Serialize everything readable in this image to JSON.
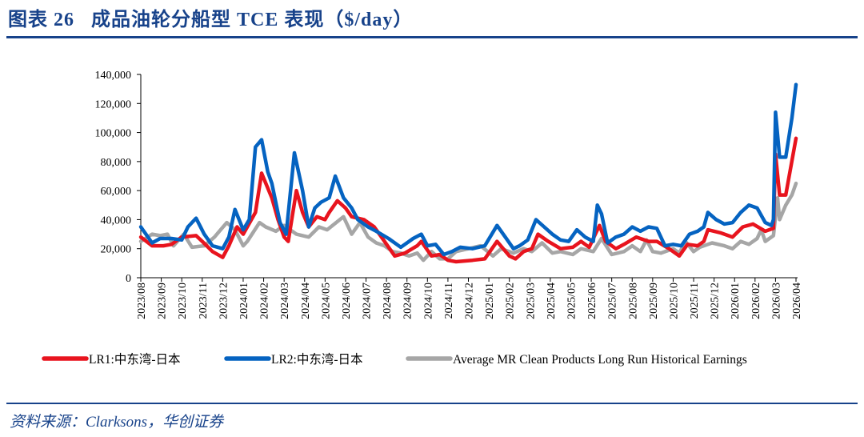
{
  "title": "图表 26   成品油轮分船型 TCE 表现（$/day）",
  "source": "资料来源：Clarksons，华创证券",
  "chart_data": {
    "type": "line",
    "title": "成品油轮分船型 TCE 表现（$/day）",
    "xlabel": "",
    "ylabel": "",
    "x_unit": "months since 2023/08",
    "value_scale": 1000,
    "ylim": [
      0,
      140000
    ],
    "yticks": [
      "0",
      "20,000",
      "40,000",
      "60,000",
      "80,000",
      "100,000",
      "120,000",
      "140,000"
    ],
    "xticks": [
      "2023/08",
      "2023/09",
      "2023/10",
      "2023/11",
      "2023/12",
      "2024/01",
      "2024/02",
      "2024/03",
      "2024/04",
      "2024/05",
      "2024/06",
      "2024/07",
      "2024/08",
      "2024/09",
      "2024/10",
      "2024/11",
      "2024/12",
      "2025/01",
      "2025/02",
      "2025/03",
      "2025/04",
      "2025/05",
      "2025/06",
      "2025/07",
      "2025/08",
      "2025/09",
      "2025/10",
      "2025/11",
      "2025/12",
      "2026/01",
      "2026/02",
      "2026/03",
      "2026/04"
    ],
    "grid": false,
    "legend_position": "bottom",
    "series": [
      {
        "name": "LR1:中东湾-日本",
        "color": "#e8141e",
        "points": [
          [
            0,
            28
          ],
          [
            0.55,
            22
          ],
          [
            1.1,
            22
          ],
          [
            1.5,
            23
          ],
          [
            2,
            28
          ],
          [
            2.7,
            29
          ],
          [
            3,
            25
          ],
          [
            3.5,
            18
          ],
          [
            4,
            14
          ],
          [
            4.3,
            22
          ],
          [
            4.7,
            35
          ],
          [
            5,
            30
          ],
          [
            5.6,
            45
          ],
          [
            5.9,
            72
          ],
          [
            6.4,
            55
          ],
          [
            6.7,
            40
          ],
          [
            7,
            28
          ],
          [
            7.2,
            25
          ],
          [
            7.6,
            60
          ],
          [
            7.9,
            45
          ],
          [
            8.2,
            35
          ],
          [
            8.6,
            42
          ],
          [
            9,
            40
          ],
          [
            9.2,
            45
          ],
          [
            9.6,
            53
          ],
          [
            10,
            48
          ],
          [
            10.3,
            42
          ],
          [
            10.9,
            40
          ],
          [
            11.4,
            35
          ],
          [
            11.9,
            25
          ],
          [
            12.4,
            15
          ],
          [
            12.9,
            17
          ],
          [
            13.5,
            22
          ],
          [
            13.7,
            25
          ],
          [
            14.2,
            15
          ],
          [
            14.6,
            16
          ],
          [
            15,
            12
          ],
          [
            15.4,
            11
          ],
          [
            16.2,
            12
          ],
          [
            16.8,
            13
          ],
          [
            17.4,
            25
          ],
          [
            18,
            15
          ],
          [
            18.3,
            13
          ],
          [
            18.7,
            18
          ],
          [
            19.1,
            20
          ],
          [
            19.4,
            30
          ],
          [
            19.9,
            25
          ],
          [
            20.5,
            20
          ],
          [
            21.1,
            21
          ],
          [
            21.5,
            25
          ],
          [
            21.9,
            21
          ],
          [
            22.4,
            36
          ],
          [
            22.7,
            25
          ],
          [
            23.2,
            20
          ],
          [
            23.6,
            23
          ],
          [
            24.2,
            28
          ],
          [
            24.8,
            25
          ],
          [
            25.2,
            25
          ],
          [
            25.8,
            20
          ],
          [
            26.3,
            15
          ],
          [
            26.7,
            23
          ],
          [
            27.2,
            22
          ],
          [
            27.5,
            25
          ],
          [
            27.7,
            33
          ],
          [
            28.3,
            31
          ],
          [
            28.9,
            28
          ],
          [
            29.4,
            35
          ],
          [
            29.9,
            37
          ],
          [
            30.5,
            32
          ],
          [
            30.9,
            34
          ],
          [
            31,
            85
          ],
          [
            31.2,
            57
          ],
          [
            31.5,
            57
          ],
          [
            32,
            96
          ]
        ]
      },
      {
        "name": "LR2:中东湾-日本",
        "color": "#0563c1",
        "points": [
          [
            0,
            35
          ],
          [
            0.55,
            24
          ],
          [
            0.94,
            27
          ],
          [
            1.5,
            27
          ],
          [
            2,
            26
          ],
          [
            2.3,
            35
          ],
          [
            2.7,
            41
          ],
          [
            3.1,
            30
          ],
          [
            3.5,
            22
          ],
          [
            4,
            20
          ],
          [
            4.3,
            28
          ],
          [
            4.6,
            47
          ],
          [
            5,
            33
          ],
          [
            5.3,
            40
          ],
          [
            5.6,
            90
          ],
          [
            5.9,
            95
          ],
          [
            6.2,
            73
          ],
          [
            6.4,
            65
          ],
          [
            6.8,
            38
          ],
          [
            7.1,
            30
          ],
          [
            7.5,
            86
          ],
          [
            7.9,
            60
          ],
          [
            8.2,
            35
          ],
          [
            8.5,
            48
          ],
          [
            8.8,
            52
          ],
          [
            9.2,
            55
          ],
          [
            9.5,
            70
          ],
          [
            9.9,
            55
          ],
          [
            10.3,
            48
          ],
          [
            10.6,
            40
          ],
          [
            11.1,
            35
          ],
          [
            11.5,
            32
          ],
          [
            12.1,
            27
          ],
          [
            12.7,
            21
          ],
          [
            13.3,
            27
          ],
          [
            13.7,
            30
          ],
          [
            14,
            22
          ],
          [
            14.4,
            23
          ],
          [
            14.8,
            16
          ],
          [
            15.2,
            18
          ],
          [
            15.6,
            21
          ],
          [
            16.2,
            20
          ],
          [
            16.8,
            22
          ],
          [
            17.4,
            36
          ],
          [
            17.8,
            28
          ],
          [
            18.2,
            20
          ],
          [
            18.5,
            22
          ],
          [
            18.9,
            26
          ],
          [
            19.3,
            40
          ],
          [
            19.7,
            35
          ],
          [
            20.1,
            30
          ],
          [
            20.5,
            26
          ],
          [
            20.9,
            25
          ],
          [
            21.3,
            33
          ],
          [
            21.7,
            28
          ],
          [
            22.1,
            25
          ],
          [
            22.3,
            50
          ],
          [
            22.5,
            44
          ],
          [
            22.8,
            24
          ],
          [
            23.2,
            28
          ],
          [
            23.6,
            30
          ],
          [
            24,
            35
          ],
          [
            24.4,
            32
          ],
          [
            24.8,
            35
          ],
          [
            25.2,
            34
          ],
          [
            25.6,
            22
          ],
          [
            26,
            23
          ],
          [
            26.4,
            22
          ],
          [
            26.8,
            30
          ],
          [
            27.2,
            32
          ],
          [
            27.5,
            35
          ],
          [
            27.7,
            45
          ],
          [
            28.1,
            40
          ],
          [
            28.5,
            37
          ],
          [
            28.9,
            38
          ],
          [
            29.3,
            45
          ],
          [
            29.7,
            50
          ],
          [
            30.1,
            48
          ],
          [
            30.5,
            38
          ],
          [
            30.8,
            36
          ],
          [
            30.9,
            40
          ],
          [
            31,
            114
          ],
          [
            31.2,
            83
          ],
          [
            31.5,
            83
          ],
          [
            31.8,
            110
          ],
          [
            32,
            133
          ]
        ]
      },
      {
        "name": "Average MR Clean Products Long Run Historical Earnings",
        "color": "#a6a6a6",
        "points": [
          [
            0,
            25
          ],
          [
            0.55,
            30
          ],
          [
            0.94,
            29
          ],
          [
            1.3,
            30
          ],
          [
            1.6,
            22
          ],
          [
            2.1,
            30
          ],
          [
            2.5,
            21
          ],
          [
            3.1,
            22
          ],
          [
            3.6,
            28
          ],
          [
            3.9,
            33
          ],
          [
            4.2,
            38
          ],
          [
            4.6,
            33
          ],
          [
            5,
            22
          ],
          [
            5.2,
            25
          ],
          [
            5.8,
            38
          ],
          [
            6.1,
            35
          ],
          [
            6.6,
            32
          ],
          [
            7,
            36
          ],
          [
            7.6,
            30
          ],
          [
            8.2,
            28
          ],
          [
            8.7,
            35
          ],
          [
            9.1,
            33
          ],
          [
            9.9,
            42
          ],
          [
            10.3,
            30
          ],
          [
            10.7,
            38
          ],
          [
            11.1,
            28
          ],
          [
            11.5,
            24
          ],
          [
            11.9,
            22
          ],
          [
            12.3,
            18
          ],
          [
            12.7,
            17
          ],
          [
            13.1,
            15
          ],
          [
            13.5,
            17
          ],
          [
            13.8,
            12
          ],
          [
            14.2,
            18
          ],
          [
            14.6,
            13
          ],
          [
            15,
            13
          ],
          [
            15.4,
            18
          ],
          [
            16,
            20
          ],
          [
            16.6,
            22
          ],
          [
            17.2,
            15
          ],
          [
            17.6,
            20
          ],
          [
            18.2,
            17
          ],
          [
            18.7,
            20
          ],
          [
            19.1,
            18
          ],
          [
            19.6,
            24
          ],
          [
            20.1,
            17
          ],
          [
            20.5,
            18
          ],
          [
            21.1,
            16
          ],
          [
            21.5,
            20
          ],
          [
            22.1,
            18
          ],
          [
            22.5,
            27
          ],
          [
            23,
            16
          ],
          [
            23.6,
            18
          ],
          [
            24,
            22
          ],
          [
            24.4,
            18
          ],
          [
            24.7,
            26
          ],
          [
            25,
            18
          ],
          [
            25.4,
            17
          ],
          [
            26,
            20
          ],
          [
            26.3,
            17
          ],
          [
            26.6,
            25
          ],
          [
            27,
            18
          ],
          [
            27.3,
            21
          ],
          [
            27.9,
            24
          ],
          [
            28.5,
            22
          ],
          [
            28.9,
            20
          ],
          [
            29.3,
            25
          ],
          [
            29.7,
            23
          ],
          [
            30.1,
            27
          ],
          [
            30.3,
            33
          ],
          [
            30.5,
            25
          ],
          [
            30.9,
            29
          ],
          [
            31.1,
            55
          ],
          [
            31.2,
            40
          ],
          [
            31.5,
            50
          ],
          [
            31.8,
            57
          ],
          [
            32,
            65
          ]
        ]
      }
    ]
  }
}
